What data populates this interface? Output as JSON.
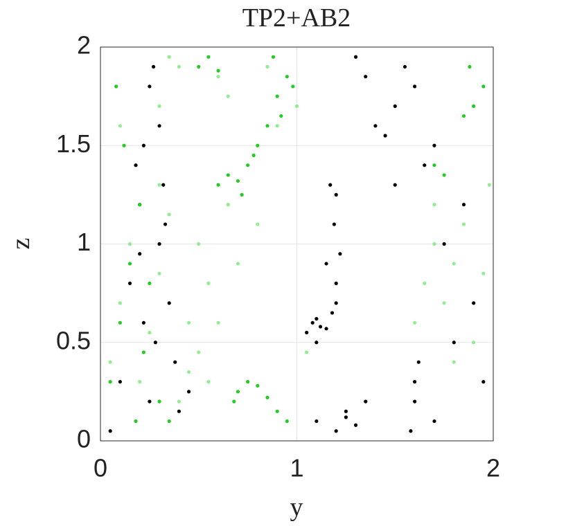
{
  "chart_data": {
    "type": "scatter",
    "title": "TP2+AB2",
    "x_label": "y",
    "y_label": "z",
    "xlim": [
      0,
      2
    ],
    "ylim": [
      0,
      2
    ],
    "xticks": [
      0,
      1,
      2
    ],
    "yticks": [
      0,
      0.5,
      1,
      1.5,
      2
    ],
    "grid": true,
    "series": [
      {
        "color": "#000000",
        "x": [
          0.05,
          0.1,
          0.15,
          0.2,
          0.22,
          0.25,
          0.28,
          0.3,
          0.32,
          0.35,
          0.25,
          0.2,
          0.3,
          0.38,
          0.27,
          0.22,
          0.33,
          0.18,
          0.4,
          0.45,
          1.05,
          1.08,
          1.1,
          1.12,
          1.15,
          1.1,
          1.18,
          1.2,
          1.22,
          1.19,
          1.2,
          1.17,
          1.15,
          1.2,
          1.25,
          1.1,
          1.2,
          1.3,
          1.35,
          1.25,
          1.4,
          1.5,
          1.6,
          1.55,
          1.45,
          1.35,
          1.7,
          1.65,
          1.3,
          1.5,
          1.6,
          1.7,
          1.8,
          1.9,
          1.75,
          1.85,
          1.95,
          1.6,
          1.58,
          1.62
        ],
        "y": [
          0.05,
          0.3,
          0.8,
          1.2,
          1.5,
          1.8,
          0.5,
          1.0,
          1.3,
          0.7,
          0.2,
          0.95,
          1.6,
          0.4,
          1.9,
          0.6,
          1.1,
          1.4,
          0.15,
          0.25,
          0.55,
          0.6,
          0.62,
          0.58,
          0.57,
          0.5,
          0.65,
          0.8,
          0.95,
          1.1,
          1.25,
          1.3,
          0.9,
          0.7,
          0.15,
          0.1,
          0.05,
          0.08,
          0.2,
          0.12,
          1.6,
          1.7,
          1.8,
          1.9,
          1.55,
          1.85,
          1.5,
          1.4,
          1.95,
          1.3,
          0.3,
          0.1,
          0.5,
          0.7,
          1.0,
          1.2,
          0.3,
          0.2,
          0.05,
          0.4
        ]
      },
      {
        "color": "#22cc22",
        "x": [
          0.6,
          0.65,
          0.7,
          0.75,
          0.8,
          0.85,
          0.9,
          0.95,
          0.72,
          0.88,
          0.92,
          0.98,
          0.78,
          0.68,
          0.7,
          0.75,
          0.8,
          0.85,
          0.9,
          0.95,
          0.05,
          0.1,
          0.15,
          0.2,
          0.12,
          0.08,
          0.18,
          0.22,
          1.85,
          1.9,
          1.95,
          1.88,
          0.5,
          0.55,
          0.6,
          1.7,
          1.75,
          0.3,
          0.35,
          0.25
        ],
        "y": [
          1.3,
          1.35,
          1.32,
          1.4,
          1.5,
          1.6,
          1.75,
          1.85,
          1.25,
          1.95,
          1.65,
          1.8,
          1.45,
          0.2,
          0.25,
          0.3,
          0.28,
          0.22,
          0.15,
          0.1,
          0.3,
          0.6,
          0.9,
          1.2,
          1.5,
          1.8,
          0.1,
          0.45,
          1.65,
          1.7,
          1.8,
          1.9,
          1.9,
          1.95,
          1.88,
          1.4,
          1.35,
          0.2,
          0.1,
          0.8
        ]
      },
      {
        "color": "#90ee90",
        "x": [
          0.05,
          0.1,
          0.15,
          0.2,
          0.25,
          0.3,
          0.35,
          0.4,
          0.45,
          0.5,
          0.55,
          0.4,
          0.35,
          0.3,
          0.45,
          0.5,
          0.6,
          0.65,
          0.7,
          0.8,
          0.85,
          1.0,
          1.05,
          0.9,
          1.6,
          1.65,
          1.7,
          1.75,
          1.8,
          1.85,
          1.9,
          1.95,
          1.7,
          1.8,
          0.6,
          0.65,
          0.55,
          0.3,
          0.1,
          1.98
        ],
        "y": [
          0.4,
          0.7,
          1.0,
          0.3,
          0.55,
          0.85,
          1.15,
          0.2,
          0.6,
          0.45,
          0.8,
          1.9,
          1.95,
          1.7,
          0.35,
          1.0,
          0.6,
          1.2,
          0.9,
          1.1,
          1.9,
          1.7,
          0.45,
          1.6,
          0.6,
          0.8,
          1.0,
          0.7,
          0.9,
          1.1,
          0.5,
          0.85,
          1.2,
          0.4,
          1.85,
          1.75,
          0.3,
          1.3,
          1.6,
          1.3
        ]
      }
    ]
  }
}
